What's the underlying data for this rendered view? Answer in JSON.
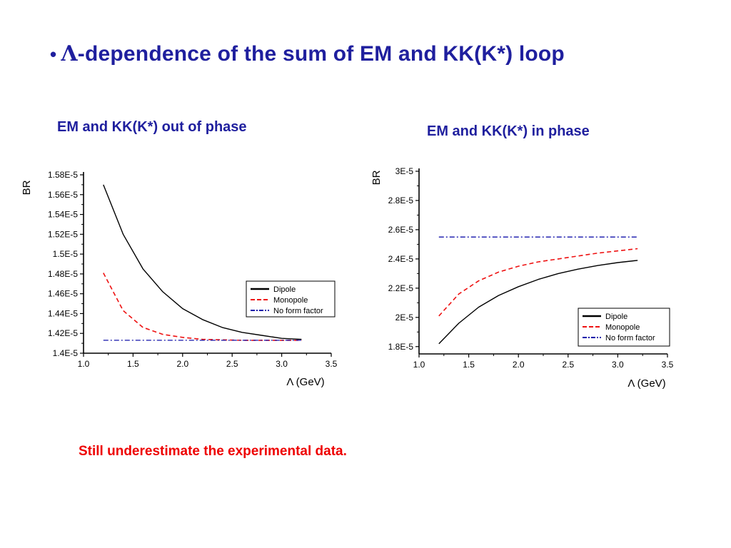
{
  "slide": {
    "bullet": "•",
    "title_symbol": "Λ",
    "title_text": "-dependence of the sum of EM and KK(K*) loop",
    "footnote": "Still underestimate the experimental data."
  },
  "colors": {
    "title": "#1f1f9e",
    "footnote": "#ee0000",
    "dipole": "#000000",
    "monopole": "#ee1111",
    "no_form_factor": "#1111aa"
  },
  "chart_data": [
    {
      "type": "line",
      "caption": "EM and KK(K*) out of phase",
      "title": "",
      "xlabel": "Λ  (GeV)",
      "ylabel": "BR",
      "xlim": [
        1.0,
        3.5
      ],
      "ylim": [
        1.4e-05,
        1.58e-05
      ],
      "x_ticks": [
        1.0,
        1.5,
        2.0,
        2.5,
        3.0,
        3.5
      ],
      "x_tick_labels": [
        "1.0",
        "1.5",
        "2.0",
        "2.5",
        "3.0",
        "3.5"
      ],
      "y_ticks": [
        1.4e-05,
        1.42e-05,
        1.44e-05,
        1.46e-05,
        1.48e-05,
        1.5e-05,
        1.52e-05,
        1.54e-05,
        1.56e-05,
        1.58e-05
      ],
      "y_tick_labels": [
        "1.4E-5",
        "1.42E-5",
        "1.44E-5",
        "1.46E-5",
        "1.48E-5",
        "1.5E-5",
        "1.52E-5",
        "1.54E-5",
        "1.56E-5",
        "1.58E-5"
      ],
      "legend_position": "lower-right",
      "x": [
        1.2,
        1.4,
        1.6,
        1.8,
        2.0,
        2.2,
        2.4,
        2.6,
        2.8,
        3.0,
        3.2
      ],
      "series": [
        {
          "name": "Dipole",
          "style": "solid",
          "values": [
            1.57e-05,
            1.52e-05,
            1.485e-05,
            1.462e-05,
            1.445e-05,
            1.434e-05,
            1.426e-05,
            1.421e-05,
            1.418e-05,
            1.415e-05,
            1.414e-05
          ]
        },
        {
          "name": "Monopole",
          "style": "dashed",
          "values": [
            1.481e-05,
            1.443e-05,
            1.426e-05,
            1.419e-05,
            1.416e-05,
            1.414e-05,
            1.4135e-05,
            1.413e-05,
            1.413e-05,
            1.413e-05,
            1.413e-05
          ]
        },
        {
          "name": "No form factor",
          "style": "dashdot",
          "values": [
            1.413e-05,
            1.413e-05,
            1.413e-05,
            1.413e-05,
            1.413e-05,
            1.413e-05,
            1.413e-05,
            1.413e-05,
            1.413e-05,
            1.413e-05,
            1.413e-05
          ]
        }
      ]
    },
    {
      "type": "line",
      "caption": "EM and KK(K*) in phase",
      "title": "",
      "xlabel": "Λ  (GeV)",
      "ylabel": "BR",
      "xlim": [
        1.0,
        3.5
      ],
      "ylim": [
        1.75e-05,
        3e-05
      ],
      "x_ticks": [
        1.0,
        1.5,
        2.0,
        2.5,
        3.0,
        3.5
      ],
      "x_tick_labels": [
        "1.0",
        "1.5",
        "2.0",
        "2.5",
        "3.0",
        "3.5"
      ],
      "y_ticks": [
        1.8e-05,
        2e-05,
        2.2e-05,
        2.4e-05,
        2.6e-05,
        2.8e-05,
        3e-05
      ],
      "y_tick_labels": [
        "1.8E-5",
        "2E-5",
        "2.2E-5",
        "2.4E-5",
        "2.6E-5",
        "2.8E-5",
        "3E-5"
      ],
      "legend_position": "lower-right",
      "x": [
        1.2,
        1.4,
        1.6,
        1.8,
        2.0,
        2.2,
        2.4,
        2.6,
        2.8,
        3.0,
        3.2
      ],
      "series": [
        {
          "name": "Dipole",
          "style": "solid",
          "values": [
            1.82e-05,
            1.96e-05,
            2.07e-05,
            2.15e-05,
            2.21e-05,
            2.26e-05,
            2.3e-05,
            2.33e-05,
            2.355e-05,
            2.375e-05,
            2.39e-05
          ]
        },
        {
          "name": "Monopole",
          "style": "dashed",
          "values": [
            2.01e-05,
            2.16e-05,
            2.25e-05,
            2.31e-05,
            2.35e-05,
            2.38e-05,
            2.4e-05,
            2.42e-05,
            2.44e-05,
            2.455e-05,
            2.47e-05
          ]
        },
        {
          "name": "No form factor",
          "style": "dashdot",
          "values": [
            2.55e-05,
            2.55e-05,
            2.55e-05,
            2.55e-05,
            2.55e-05,
            2.55e-05,
            2.55e-05,
            2.55e-05,
            2.55e-05,
            2.55e-05,
            2.55e-05
          ]
        }
      ]
    }
  ]
}
